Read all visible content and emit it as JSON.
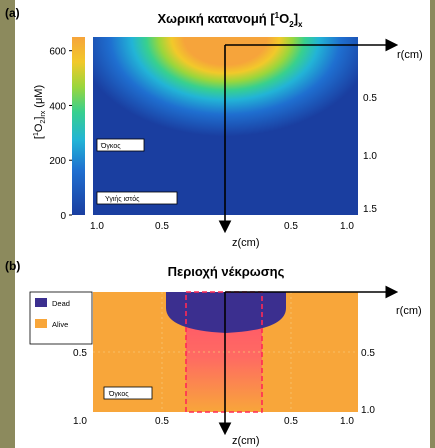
{
  "figure": {
    "frame_color": "#8c8a5d",
    "background": "#ffffff"
  },
  "chart_data": [
    {
      "panel": "(a)",
      "type": "heatmap",
      "title_main": "Χωρική κατανομή [",
      "title_sup": "1",
      "title_o": "O",
      "title_sub2": "2",
      "title_close": "]",
      "title_subx": "x",
      "colorbar": {
        "label_main": "[",
        "label_sup": "1",
        "label_o": "O",
        "label_sub": "2",
        "label_close": "]",
        "label_subrx": "rx",
        "label_unit": " (μM)",
        "ticks": [
          "600",
          "400",
          "200",
          "0"
        ],
        "tick_values": [
          600,
          400,
          200,
          0
        ],
        "range": [
          0,
          650
        ],
        "colormap": [
          "#1a3ea0",
          "#1f6fd0",
          "#22b4d6",
          "#38d08e",
          "#9ad63c",
          "#f2c92a",
          "#f6a43b"
        ]
      },
      "r_axis": {
        "label": "r(cm)",
        "ticks": [
          "0.5",
          "1.0",
          "1.5"
        ],
        "values": [
          0.5,
          1.0,
          1.5
        ]
      },
      "z_axis": {
        "label": "z(cm)",
        "ticks_left": [
          "1.0",
          "0.5"
        ],
        "ticks_right": [
          "0.5",
          "1.0"
        ],
        "values": [
          1.0,
          0.5,
          0.5,
          1.0
        ]
      },
      "annotations": [
        "Όγκος",
        "Υγιής ιστός"
      ],
      "tumor_peak": 600,
      "background_value": 0
    },
    {
      "panel": "(b)",
      "type": "heatmap",
      "title": "Περιοχή νέκρωσης",
      "legend": [
        {
          "label": "Dead",
          "color": "#3b2f8f"
        },
        {
          "label": "Alive",
          "color": "#f8a63a"
        }
      ],
      "r_axis": {
        "label": "r(cm)",
        "ticks": [
          "0.5",
          "1.0"
        ],
        "values": [
          0.5,
          1.0
        ]
      },
      "z_axis": {
        "label": "z(cm)",
        "ticks_left": [
          "0.5",
          "1.0",
          "0.5"
        ],
        "ticks_right": [
          "0.5",
          "1.0"
        ]
      },
      "annotations": [
        "Όγκος"
      ],
      "tumor_color": "#ff4d6d",
      "dashed_color": "#ff2a55"
    }
  ]
}
